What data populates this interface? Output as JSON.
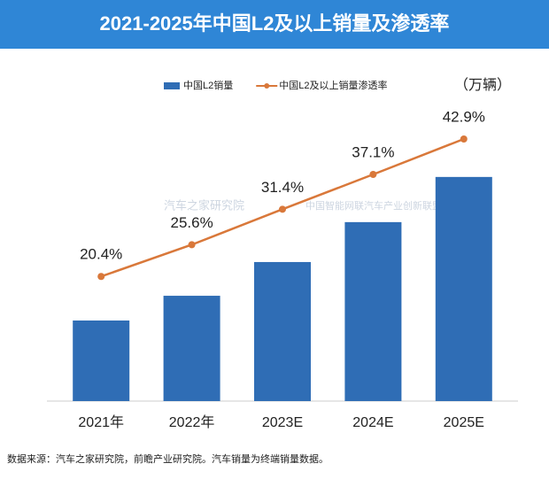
{
  "chart_data": {
    "type": "bar-line",
    "title": "2021-2025年中国L2及以上销量及渗透率",
    "unit_label": "（万辆）",
    "categories": [
      "2021年",
      "2022年",
      "2023E",
      "2024E",
      "2025E"
    ],
    "series": [
      {
        "name": "中国L2销量",
        "type": "bar",
        "color": "#2f6db5",
        "values": [
          430,
          562,
          742,
          955,
          1196
        ]
      },
      {
        "name": "中国L2及以上销量渗透率",
        "type": "line",
        "axis": "y2",
        "color": "#d9783a",
        "values": [
          20.4,
          25.6,
          31.4,
          37.1,
          42.9
        ],
        "value_labels": [
          "20.4%",
          "25.6%",
          "31.4%",
          "37.1%",
          "42.9%"
        ]
      }
    ],
    "ylim": [
      0,
      1630
    ],
    "y2lim": [
      0,
      50
    ],
    "legend": "top",
    "watermarks": [
      "汽车之家研究院",
      "中国智能网联汽车产业创新联盟"
    ],
    "source": "数据来源：汽车之家研究院，前瞻产业研究院。汽车销量为终端销量数据。"
  }
}
